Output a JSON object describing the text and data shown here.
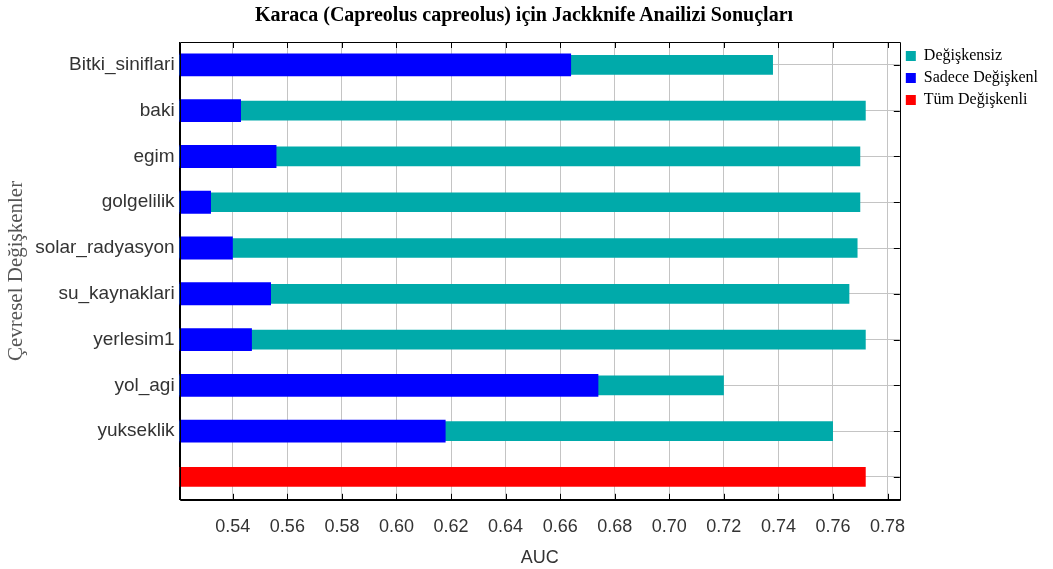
{
  "chart_data": {
    "type": "bar",
    "orientation": "horizontal",
    "title": "Karaca (Capreolus capreolus) için Jackknife Anailizi Sonuçları",
    "xlabel": "AUC",
    "ylabel": "Çevresel Değişkenler",
    "categories": [
      "Bitki_siniflari",
      "baki",
      "egim",
      "golgelilik",
      "solar_radyasyon",
      "su_kaynaklari",
      "yerlesim1",
      "yol_agi",
      "yukseklik",
      null
    ],
    "series": [
      {
        "name": "Değişkensiz",
        "color": "#00aaaa",
        "values": [
          0.738,
          0.772,
          0.77,
          0.77,
          0.769,
          0.766,
          0.772,
          0.72,
          0.76,
          null
        ]
      },
      {
        "name": "Sadece Değişkenl",
        "color": "#0000ff",
        "values": [
          0.664,
          0.543,
          0.556,
          0.532,
          0.54,
          0.554,
          0.547,
          0.674,
          0.618,
          null
        ]
      },
      {
        "name": "Tüm Değişkenli",
        "color": "#ff0000",
        "values": [
          null,
          null,
          null,
          null,
          null,
          null,
          null,
          null,
          null,
          0.772
        ]
      }
    ],
    "xlim": [
      0.5205,
      0.7845
    ],
    "xticks": [
      0.54,
      0.56,
      0.58,
      {
        "value": 0.6,
        "label": "0.60"
      },
      0.62,
      0.64,
      0.66,
      0.68,
      {
        "value": 0.7,
        "label": "0.70"
      },
      0.72,
      0.74,
      0.76,
      0.78
    ],
    "grid": true,
    "legend": "top right"
  }
}
